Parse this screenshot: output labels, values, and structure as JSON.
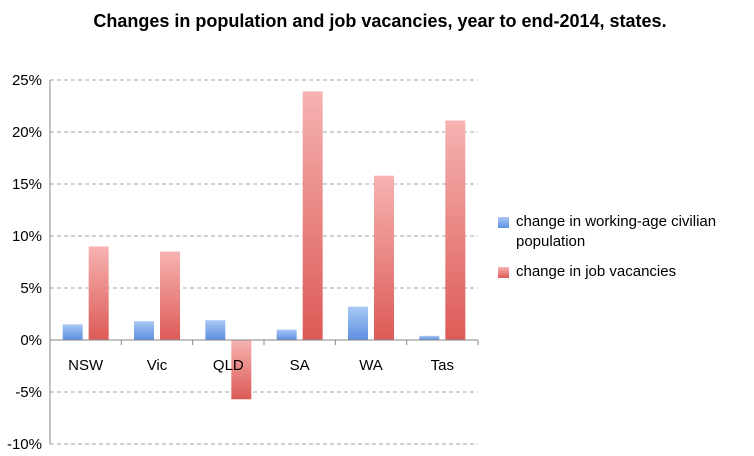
{
  "chart_data": {
    "type": "bar",
    "title": "Changes in population and job vacancies, year to end-2014, states.",
    "categories": [
      "NSW",
      "Vic",
      "QLD",
      "SA",
      "WA",
      "Tas"
    ],
    "series": [
      {
        "name": "change in working-age civilian population",
        "values": [
          1.5,
          1.8,
          1.9,
          1.0,
          3.2,
          0.4
        ],
        "color": "#6fa0e8"
      },
      {
        "name": "change in job vacancies",
        "values": [
          9.0,
          8.5,
          -5.7,
          23.9,
          15.8,
          21.1
        ],
        "color": "#e8807e"
      }
    ],
    "ylim": [
      -10,
      25
    ],
    "yticks": [
      "-10%",
      "-5%",
      "0%",
      "5%",
      "10%",
      "15%",
      "20%",
      "25%"
    ],
    "ytick_values": [
      -10,
      -5,
      0,
      5,
      10,
      15,
      20,
      25
    ],
    "grid": true,
    "legend_position": "right"
  }
}
